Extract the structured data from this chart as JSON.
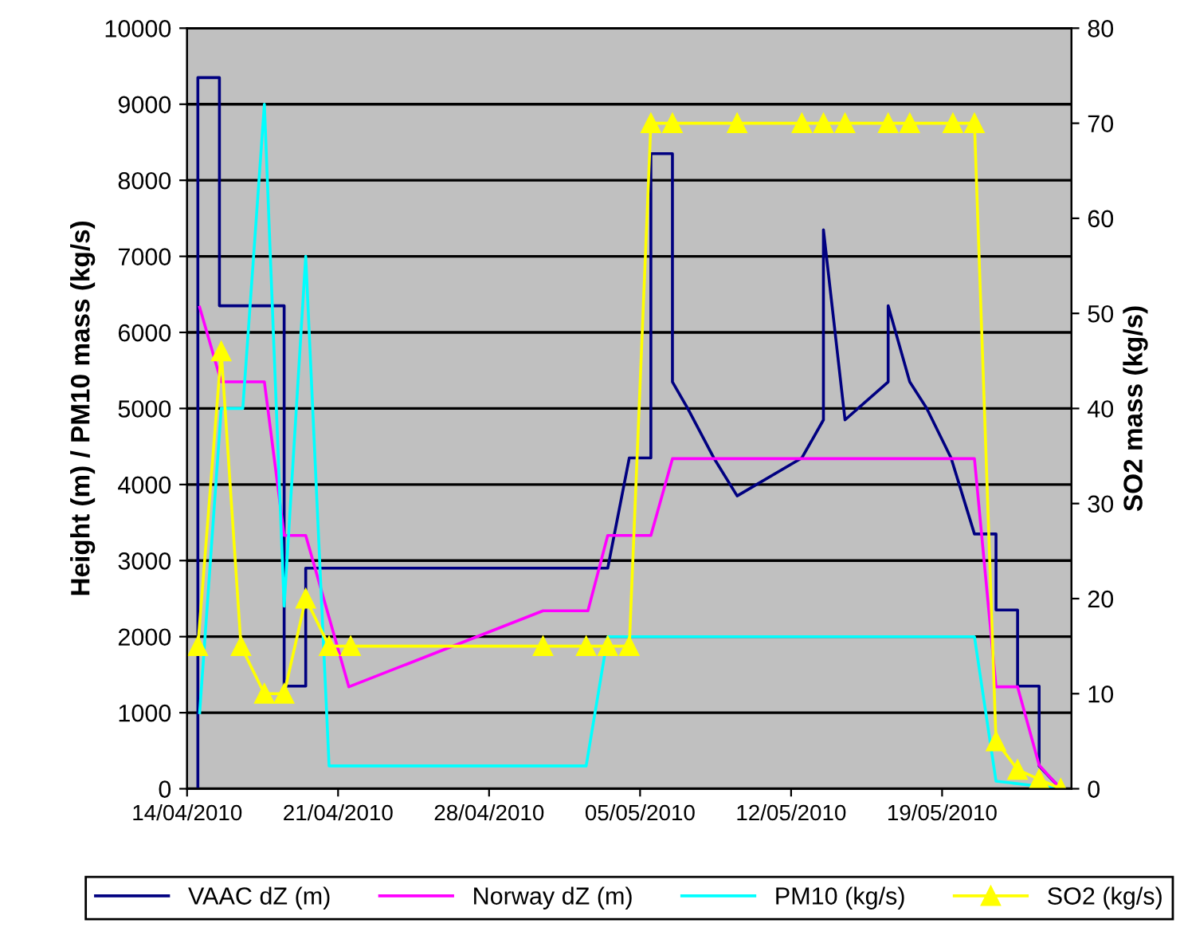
{
  "chart_data": {
    "type": "line",
    "xlabel": null,
    "ylabel": "Height (m) / PM10 mass (kg/s)",
    "y2label": "SO2 mass (kg/s)",
    "xlim": [
      "2010-04-14",
      "2010-05-25"
    ],
    "xticks": [
      {
        "value": "2010-04-14",
        "label": "14/04/2010"
      },
      {
        "value": "2010-04-21",
        "label": "21/04/2010"
      },
      {
        "value": "2010-04-28",
        "label": "28/04/2010"
      },
      {
        "value": "2010-05-05",
        "label": "05/05/2010"
      },
      {
        "value": "2010-05-12",
        "label": "12/05/2010"
      },
      {
        "value": "2010-05-19",
        "label": "19/05/2010"
      }
    ],
    "ylim": [
      0,
      10000
    ],
    "yticks": [
      0,
      1000,
      2000,
      3000,
      4000,
      5000,
      6000,
      7000,
      8000,
      9000,
      10000
    ],
    "y2lim": [
      0,
      80
    ],
    "y2ticks": [
      0,
      10,
      20,
      30,
      40,
      50,
      60,
      70,
      80
    ],
    "grid": "y",
    "legend": "bottom",
    "series": [
      {
        "name": "VAAC dZ (m)",
        "color": "#000080",
        "marker": "none",
        "x": [
          "2010-04-14T12:00",
          "2010-04-14T12:00",
          "2010-04-15T12:00",
          "2010-04-15T12:00",
          "2010-04-18T12:00",
          "2010-04-18T12:00",
          "2010-04-19T12:00",
          "2010-04-19T12:00",
          "2010-05-03T12:00",
          "2010-05-04T12:00",
          "2010-05-05T12:00",
          "2010-05-05T12:00",
          "2010-05-06T12:00",
          "2010-05-06T12:00",
          "2010-05-07T05:00",
          "2010-05-08T10:00",
          "2010-05-09T12:00",
          "2010-05-12T12:00",
          "2010-05-13T12:00",
          "2010-05-13T12:00",
          "2010-05-14T12:00",
          "2010-05-16T12:00",
          "2010-05-16T12:00",
          "2010-05-17T12:00",
          "2010-05-18T07:00",
          "2010-05-19T10:00",
          "2010-05-20T12:00",
          "2010-05-21T12:00",
          "2010-05-21T12:00",
          "2010-05-22T12:00",
          "2010-05-22T12:00",
          "2010-05-23T12:00",
          "2010-05-23T12:00",
          "2010-05-24T12:00"
        ],
        "values": [
          0,
          9350,
          9350,
          6350,
          6350,
          1350,
          1350,
          2900,
          2900,
          4350,
          4350,
          8350,
          8350,
          5350,
          5000,
          4350,
          3850,
          4350,
          4850,
          7350,
          4850,
          5350,
          6350,
          5350,
          5000,
          4350,
          3350,
          3350,
          2350,
          2350,
          1350,
          1350,
          300,
          0
        ]
      },
      {
        "name": "Norway dZ (m)",
        "color": "#ff00ff",
        "marker": "none",
        "x": [
          "2010-04-14T14:00",
          "2010-04-15T14:00",
          "2010-04-17T14:00",
          "2010-04-18T12:00",
          "2010-04-19T12:00",
          "2010-04-21T12:00",
          "2010-04-30T12:00",
          "2010-05-02T14:00",
          "2010-05-03T12:00",
          "2010-05-05T12:00",
          "2010-05-06T12:00",
          "2010-05-20T12:00",
          "2010-05-21T12:00",
          "2010-05-22T12:00",
          "2010-05-23T12:00",
          "2010-05-24T12:00"
        ],
        "values": [
          6330,
          5350,
          5350,
          3330,
          3330,
          1340,
          2340,
          2340,
          3330,
          3330,
          4340,
          4340,
          1340,
          1340,
          310,
          0
        ]
      },
      {
        "name": "PM10 (kg/s)",
        "color": "#00ffff",
        "marker": "none",
        "x": [
          "2010-04-14T14:00",
          "2010-04-15T14:00",
          "2010-04-16T14:00",
          "2010-04-17T14:00",
          "2010-04-18T12:00",
          "2010-04-19T12:00",
          "2010-04-20T14:00",
          "2010-05-02T12:00",
          "2010-05-03T12:00",
          "2010-05-20T12:00",
          "2010-05-21T12:00",
          "2010-05-23T00:00",
          "2010-05-24T12:00"
        ],
        "values": [
          1000,
          5000,
          5000,
          9000,
          2400,
          7000,
          300,
          300,
          2000,
          2000,
          100,
          50,
          0
        ]
      },
      {
        "name": "SO2 (kg/s)",
        "color": "#ffff00",
        "marker": "triangle",
        "axis": "y2",
        "x": [
          "2010-04-14T12:00",
          "2010-04-15T14:00",
          "2010-04-16T12:00",
          "2010-04-17T14:00",
          "2010-04-18T12:00",
          "2010-04-19T12:00",
          "2010-04-20T14:00",
          "2010-04-21T14:00",
          "2010-04-30T12:00",
          "2010-05-02T12:00",
          "2010-05-03T12:00",
          "2010-05-04T12:00",
          "2010-05-05T12:00",
          "2010-05-06T12:00",
          "2010-05-09T12:00",
          "2010-05-12T12:00",
          "2010-05-13T12:00",
          "2010-05-14T12:00",
          "2010-05-16T12:00",
          "2010-05-17T12:00",
          "2010-05-19T12:00",
          "2010-05-20T12:00",
          "2010-05-21T12:00",
          "2010-05-22T12:00",
          "2010-05-23T12:00",
          "2010-05-24T12:00"
        ],
        "values": [
          15,
          46,
          15,
          10,
          10,
          20,
          15,
          15,
          15,
          15,
          15,
          15,
          70,
          70,
          70,
          70,
          70,
          70,
          70,
          70,
          70,
          70,
          5,
          2,
          1,
          0
        ]
      }
    ]
  }
}
